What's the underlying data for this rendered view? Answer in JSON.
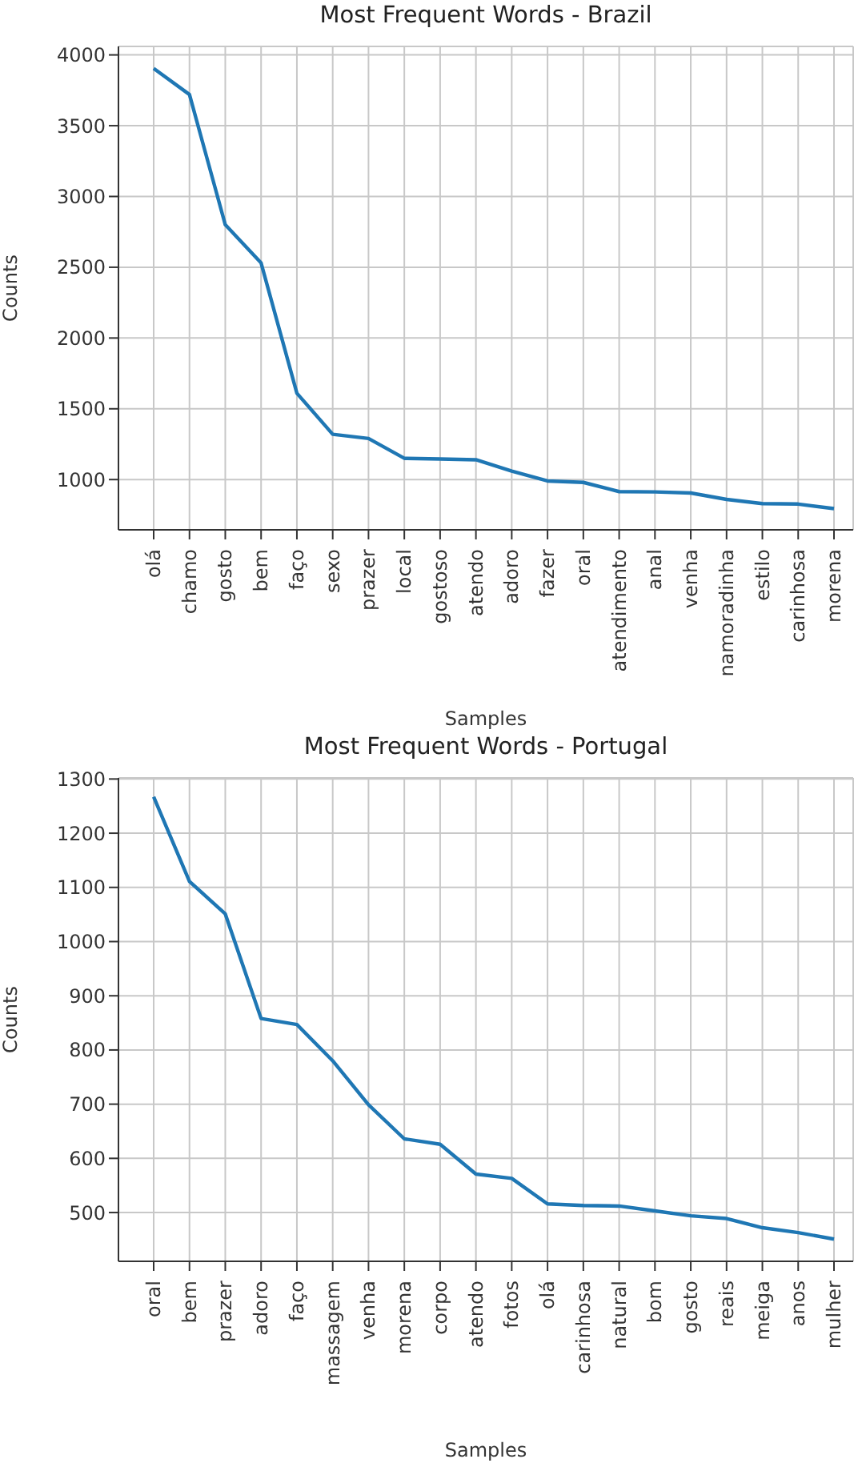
{
  "chart_data": [
    {
      "type": "line",
      "title": "Most Frequent Words - Brazil",
      "xlabel": "Samples",
      "ylabel": "Counts",
      "categories": [
        "olá",
        "chamo",
        "gosto",
        "bem",
        "faço",
        "sexo",
        "prazer",
        "local",
        "gostoso",
        "atendo",
        "adoro",
        "fazer",
        "oral",
        "atendimento",
        "anal",
        "venha",
        "namoradinha",
        "estilo",
        "carinhosa",
        "morena"
      ],
      "series": [
        {
          "color": "#1f77b4",
          "values": [
            3905,
            3720,
            2800,
            2530,
            1610,
            1320,
            1290,
            1150,
            1145,
            1140,
            1060,
            990,
            980,
            915,
            913,
            905,
            860,
            830,
            827,
            795
          ]
        }
      ],
      "ylim": [
        645,
        4060
      ],
      "yticks": [
        1000,
        1500,
        2000,
        2500,
        3000,
        3500,
        4000
      ],
      "grid": true,
      "marker": "none",
      "line_style": "solid"
    },
    {
      "type": "line",
      "title": "Most Frequent Words - Portugal",
      "xlabel": "Samples",
      "ylabel": "Counts",
      "categories": [
        "oral",
        "bem",
        "prazer",
        "adoro",
        "faço",
        "massagem",
        "venha",
        "morena",
        "corpo",
        "atendo",
        "fotos",
        "olá",
        "carinhosa",
        "natural",
        "bom",
        "gosto",
        "reais",
        "meiga",
        "anos",
        "mulher"
      ],
      "series": [
        {
          "color": "#1f77b4",
          "values": [
            1267,
            1111,
            1051,
            858,
            847,
            780,
            699,
            636,
            626,
            571,
            563,
            516,
            513,
            512,
            503,
            494,
            489,
            472,
            463,
            451
          ]
        }
      ],
      "ylim": [
        410,
        1302
      ],
      "yticks": [
        500,
        600,
        700,
        800,
        900,
        1000,
        1100,
        1200,
        1300
      ],
      "grid": true,
      "marker": "none",
      "line_style": "solid"
    }
  ]
}
